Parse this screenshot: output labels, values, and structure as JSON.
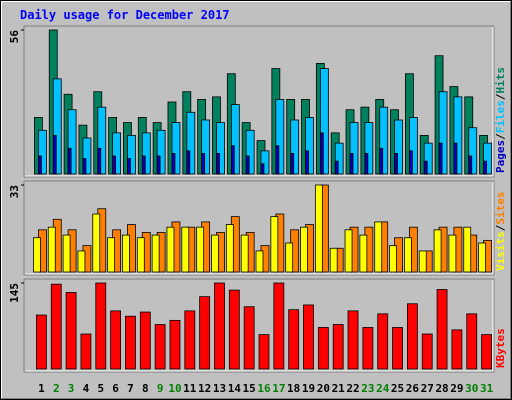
{
  "title": "Daily usage for December 2017",
  "legend_separator": "/",
  "chart_data": [
    {
      "type": "bar",
      "ylim": [
        0,
        56
      ],
      "yticks": [
        56
      ],
      "series": [
        {
          "name": "Hits",
          "color": "#00805c",
          "values": [
            22,
            56,
            31,
            19,
            32,
            22,
            20,
            22,
            20,
            28,
            32,
            29,
            30,
            39,
            20,
            13,
            41,
            29,
            29,
            43,
            16,
            25,
            26,
            29,
            25,
            39,
            15,
            46,
            34,
            30,
            15
          ]
        },
        {
          "name": "Files",
          "color": "#00c0ff",
          "values": [
            17,
            37,
            25,
            14,
            26,
            16,
            15,
            16,
            17,
            20,
            24,
            21,
            20,
            27,
            17,
            9,
            29,
            21,
            22,
            41,
            12,
            20,
            20,
            26,
            21,
            22,
            12,
            32,
            30,
            18,
            12
          ]
        },
        {
          "name": "Pages",
          "color": "#0000c0",
          "values": [
            7,
            15,
            10,
            6,
            10,
            7,
            6,
            7,
            7,
            8,
            9,
            8,
            8,
            11,
            7,
            4,
            11,
            8,
            9,
            16,
            5,
            8,
            8,
            10,
            8,
            9,
            5,
            12,
            12,
            7,
            5
          ]
        }
      ]
    },
    {
      "type": "bar",
      "ylim": [
        0,
        33
      ],
      "yticks": [
        33
      ],
      "series": [
        {
          "name": "Sites",
          "color": "#ff8000",
          "values": [
            16,
            20,
            16,
            10,
            24,
            16,
            18,
            15,
            15,
            19,
            17,
            19,
            15,
            21,
            15,
            10,
            22,
            16,
            18,
            33,
            9,
            17,
            17,
            19,
            13,
            17,
            8,
            17,
            17,
            14,
            12
          ]
        },
        {
          "name": "Visits",
          "color": "#ffff00",
          "values": [
            13,
            17,
            14,
            8,
            22,
            13,
            14,
            13,
            14,
            17,
            17,
            17,
            14,
            18,
            14,
            8,
            21,
            11,
            17,
            33,
            9,
            16,
            14,
            19,
            10,
            13,
            8,
            16,
            14,
            17,
            11
          ]
        }
      ]
    },
    {
      "type": "bar",
      "ylim": [
        0,
        145
      ],
      "yticks": [
        145
      ],
      "categories": [
        "1",
        "2",
        "3",
        "4",
        "5",
        "6",
        "7",
        "8",
        "9",
        "10",
        "11",
        "12",
        "13",
        "14",
        "15",
        "16",
        "17",
        "18",
        "19",
        "20",
        "21",
        "22",
        "23",
        "24",
        "25",
        "26",
        "27",
        "28",
        "29",
        "30",
        "31"
      ],
      "category_colors": [
        "#000000",
        "#008000",
        "#008000",
        "#000000",
        "#000000",
        "#000000",
        "#000000",
        "#000000",
        "#008000",
        "#008000",
        "#000000",
        "#000000",
        "#000000",
        "#000000",
        "#000000",
        "#008000",
        "#008000",
        "#000000",
        "#000000",
        "#000000",
        "#000000",
        "#000000",
        "#008000",
        "#008000",
        "#000000",
        "#000000",
        "#000000",
        "#000000",
        "#000000",
        "#008000",
        "#008000"
      ],
      "series": [
        {
          "name": "KBytes",
          "color": "#ff0000",
          "values": [
            91,
            143,
            129,
            59,
            145,
            98,
            89,
            96,
            75,
            82,
            98,
            122,
            145,
            133,
            105,
            58,
            145,
            100,
            108,
            70,
            75,
            98,
            70,
            93,
            70,
            110,
            59,
            134,
            66,
            93,
            58
          ]
        }
      ]
    }
  ]
}
